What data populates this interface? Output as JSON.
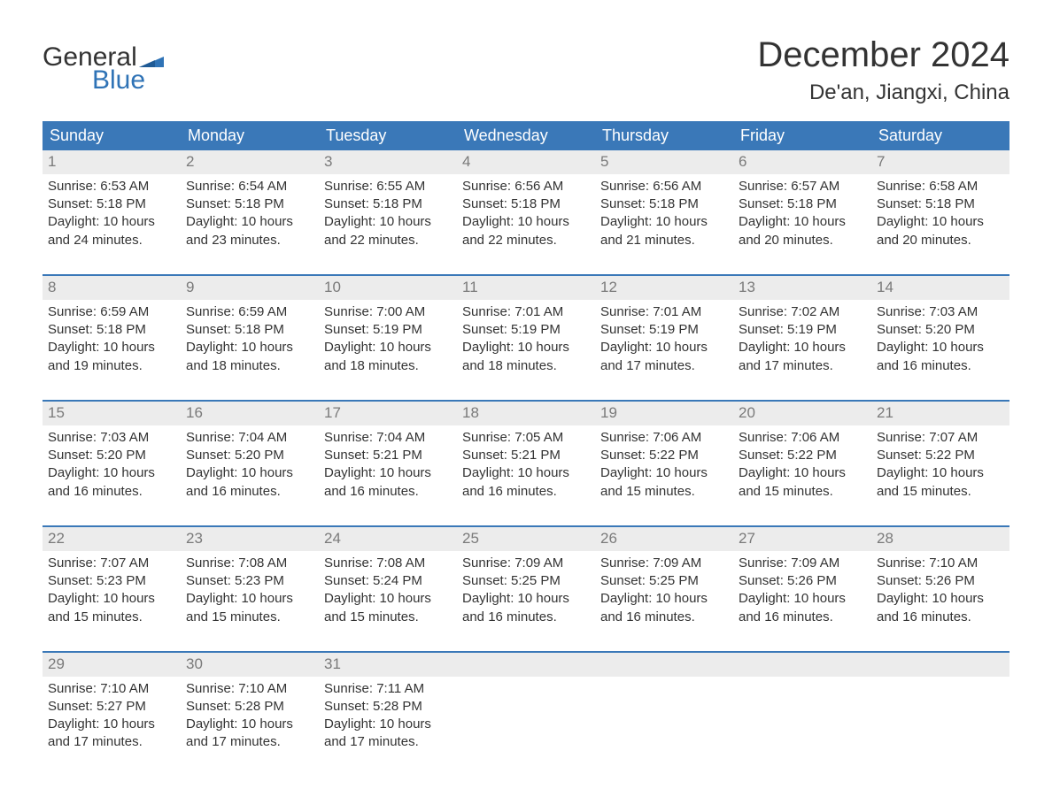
{
  "brand": {
    "word1": "General",
    "word2": "Blue",
    "flag_color": "#2f73b6"
  },
  "title": "December 2024",
  "location": "De'an, Jiangxi, China",
  "colors": {
    "header_bg": "#3a78b8",
    "header_text": "#ffffff",
    "daynum_bg": "#ececec",
    "daynum_text": "#7a7a7a",
    "body_text": "#333333",
    "rule": "#3a78b8",
    "brand_blue": "#2f73b6"
  },
  "columns": [
    "Sunday",
    "Monday",
    "Tuesday",
    "Wednesday",
    "Thursday",
    "Friday",
    "Saturday"
  ],
  "weeks": [
    [
      {
        "n": "1",
        "sr": "Sunrise: 6:53 AM",
        "ss": "Sunset: 5:18 PM",
        "d1": "Daylight: 10 hours",
        "d2": "and 24 minutes."
      },
      {
        "n": "2",
        "sr": "Sunrise: 6:54 AM",
        "ss": "Sunset: 5:18 PM",
        "d1": "Daylight: 10 hours",
        "d2": "and 23 minutes."
      },
      {
        "n": "3",
        "sr": "Sunrise: 6:55 AM",
        "ss": "Sunset: 5:18 PM",
        "d1": "Daylight: 10 hours",
        "d2": "and 22 minutes."
      },
      {
        "n": "4",
        "sr": "Sunrise: 6:56 AM",
        "ss": "Sunset: 5:18 PM",
        "d1": "Daylight: 10 hours",
        "d2": "and 22 minutes."
      },
      {
        "n": "5",
        "sr": "Sunrise: 6:56 AM",
        "ss": "Sunset: 5:18 PM",
        "d1": "Daylight: 10 hours",
        "d2": "and 21 minutes."
      },
      {
        "n": "6",
        "sr": "Sunrise: 6:57 AM",
        "ss": "Sunset: 5:18 PM",
        "d1": "Daylight: 10 hours",
        "d2": "and 20 minutes."
      },
      {
        "n": "7",
        "sr": "Sunrise: 6:58 AM",
        "ss": "Sunset: 5:18 PM",
        "d1": "Daylight: 10 hours",
        "d2": "and 20 minutes."
      }
    ],
    [
      {
        "n": "8",
        "sr": "Sunrise: 6:59 AM",
        "ss": "Sunset: 5:18 PM",
        "d1": "Daylight: 10 hours",
        "d2": "and 19 minutes."
      },
      {
        "n": "9",
        "sr": "Sunrise: 6:59 AM",
        "ss": "Sunset: 5:18 PM",
        "d1": "Daylight: 10 hours",
        "d2": "and 18 minutes."
      },
      {
        "n": "10",
        "sr": "Sunrise: 7:00 AM",
        "ss": "Sunset: 5:19 PM",
        "d1": "Daylight: 10 hours",
        "d2": "and 18 minutes."
      },
      {
        "n": "11",
        "sr": "Sunrise: 7:01 AM",
        "ss": "Sunset: 5:19 PM",
        "d1": "Daylight: 10 hours",
        "d2": "and 18 minutes."
      },
      {
        "n": "12",
        "sr": "Sunrise: 7:01 AM",
        "ss": "Sunset: 5:19 PM",
        "d1": "Daylight: 10 hours",
        "d2": "and 17 minutes."
      },
      {
        "n": "13",
        "sr": "Sunrise: 7:02 AM",
        "ss": "Sunset: 5:19 PM",
        "d1": "Daylight: 10 hours",
        "d2": "and 17 minutes."
      },
      {
        "n": "14",
        "sr": "Sunrise: 7:03 AM",
        "ss": "Sunset: 5:20 PM",
        "d1": "Daylight: 10 hours",
        "d2": "and 16 minutes."
      }
    ],
    [
      {
        "n": "15",
        "sr": "Sunrise: 7:03 AM",
        "ss": "Sunset: 5:20 PM",
        "d1": "Daylight: 10 hours",
        "d2": "and 16 minutes."
      },
      {
        "n": "16",
        "sr": "Sunrise: 7:04 AM",
        "ss": "Sunset: 5:20 PM",
        "d1": "Daylight: 10 hours",
        "d2": "and 16 minutes."
      },
      {
        "n": "17",
        "sr": "Sunrise: 7:04 AM",
        "ss": "Sunset: 5:21 PM",
        "d1": "Daylight: 10 hours",
        "d2": "and 16 minutes."
      },
      {
        "n": "18",
        "sr": "Sunrise: 7:05 AM",
        "ss": "Sunset: 5:21 PM",
        "d1": "Daylight: 10 hours",
        "d2": "and 16 minutes."
      },
      {
        "n": "19",
        "sr": "Sunrise: 7:06 AM",
        "ss": "Sunset: 5:22 PM",
        "d1": "Daylight: 10 hours",
        "d2": "and 15 minutes."
      },
      {
        "n": "20",
        "sr": "Sunrise: 7:06 AM",
        "ss": "Sunset: 5:22 PM",
        "d1": "Daylight: 10 hours",
        "d2": "and 15 minutes."
      },
      {
        "n": "21",
        "sr": "Sunrise: 7:07 AM",
        "ss": "Sunset: 5:22 PM",
        "d1": "Daylight: 10 hours",
        "d2": "and 15 minutes."
      }
    ],
    [
      {
        "n": "22",
        "sr": "Sunrise: 7:07 AM",
        "ss": "Sunset: 5:23 PM",
        "d1": "Daylight: 10 hours",
        "d2": "and 15 minutes."
      },
      {
        "n": "23",
        "sr": "Sunrise: 7:08 AM",
        "ss": "Sunset: 5:23 PM",
        "d1": "Daylight: 10 hours",
        "d2": "and 15 minutes."
      },
      {
        "n": "24",
        "sr": "Sunrise: 7:08 AM",
        "ss": "Sunset: 5:24 PM",
        "d1": "Daylight: 10 hours",
        "d2": "and 15 minutes."
      },
      {
        "n": "25",
        "sr": "Sunrise: 7:09 AM",
        "ss": "Sunset: 5:25 PM",
        "d1": "Daylight: 10 hours",
        "d2": "and 16 minutes."
      },
      {
        "n": "26",
        "sr": "Sunrise: 7:09 AM",
        "ss": "Sunset: 5:25 PM",
        "d1": "Daylight: 10 hours",
        "d2": "and 16 minutes."
      },
      {
        "n": "27",
        "sr": "Sunrise: 7:09 AM",
        "ss": "Sunset: 5:26 PM",
        "d1": "Daylight: 10 hours",
        "d2": "and 16 minutes."
      },
      {
        "n": "28",
        "sr": "Sunrise: 7:10 AM",
        "ss": "Sunset: 5:26 PM",
        "d1": "Daylight: 10 hours",
        "d2": "and 16 minutes."
      }
    ],
    [
      {
        "n": "29",
        "sr": "Sunrise: 7:10 AM",
        "ss": "Sunset: 5:27 PM",
        "d1": "Daylight: 10 hours",
        "d2": "and 17 minutes."
      },
      {
        "n": "30",
        "sr": "Sunrise: 7:10 AM",
        "ss": "Sunset: 5:28 PM",
        "d1": "Daylight: 10 hours",
        "d2": "and 17 minutes."
      },
      {
        "n": "31",
        "sr": "Sunrise: 7:11 AM",
        "ss": "Sunset: 5:28 PM",
        "d1": "Daylight: 10 hours",
        "d2": "and 17 minutes."
      },
      {
        "n": "",
        "sr": "",
        "ss": "",
        "d1": "",
        "d2": ""
      },
      {
        "n": "",
        "sr": "",
        "ss": "",
        "d1": "",
        "d2": ""
      },
      {
        "n": "",
        "sr": "",
        "ss": "",
        "d1": "",
        "d2": ""
      },
      {
        "n": "",
        "sr": "",
        "ss": "",
        "d1": "",
        "d2": ""
      }
    ]
  ]
}
